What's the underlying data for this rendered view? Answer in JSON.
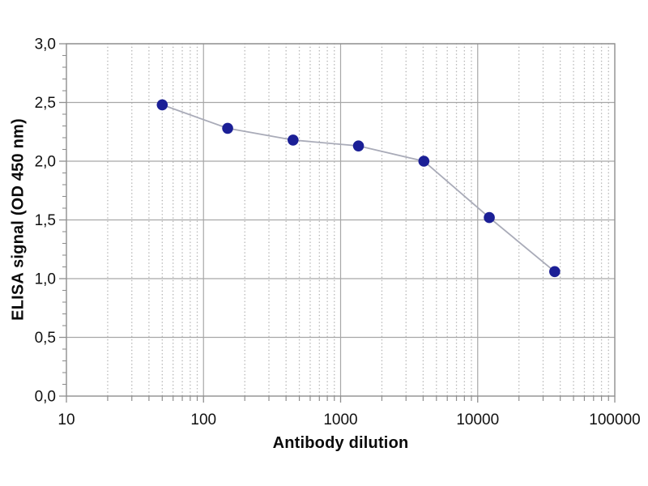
{
  "chart_data": {
    "type": "line",
    "title": "",
    "xlabel": "Antibody dilution",
    "ylabel": "ELISA signal (OD 450 nm)",
    "x_scale": "log",
    "xlim": [
      10,
      100000
    ],
    "ylim": [
      0.0,
      3.0
    ],
    "x_tick_labels": [
      "10",
      "100",
      "1000",
      "10000",
      "100000"
    ],
    "y_tick_labels": [
      "0,0",
      "0,5",
      "1,0",
      "1,5",
      "2,0",
      "2,5",
      "3,0"
    ],
    "y_major_step": 0.5,
    "y_minor_step": 0.1,
    "grid": "horizontal-major-solid, vertical-decade-solid, vertical-log-minor-dotted",
    "legend_position": "none",
    "series": [
      {
        "name": "ELISA signal",
        "x": [
          50,
          150,
          450,
          1350,
          4050,
          12150,
          36450
        ],
        "y": [
          2.48,
          2.28,
          2.18,
          2.13,
          2.0,
          1.52,
          1.06
        ]
      }
    ],
    "colors": {
      "marker": "#1b1f96",
      "line": "#a9abb8",
      "grid_major": "#a7a7a7",
      "grid_minor": "#b5b5b5",
      "frame": "#8f8f8f",
      "text": "#111111"
    }
  }
}
